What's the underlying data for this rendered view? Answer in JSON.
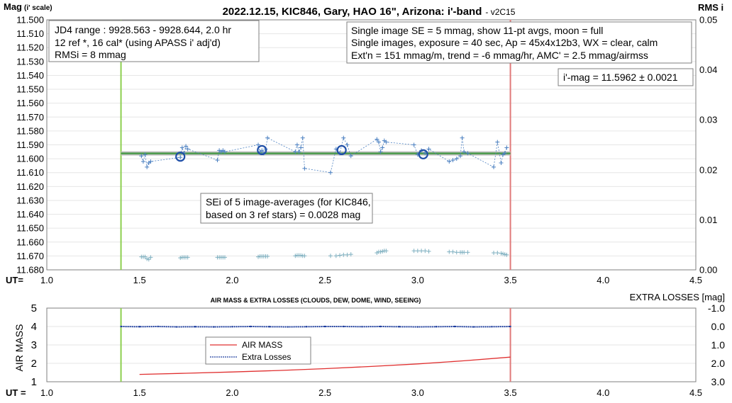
{
  "chart_data": [
    {
      "type": "scatter",
      "title": "2022.12.15, KIC846, Gary, HAO 16\", Arizona: i'-band",
      "title_suffix": "- v2C15",
      "ylabel_main": "Mag",
      "ylabel_sub": "(i' scale)",
      "ylabel_right": "RMS i",
      "x_axis_label": "UT=",
      "x_ticks": [
        "1.0",
        "1.5",
        "2.0",
        "2.5",
        "3.0",
        "3.5",
        "4.0",
        "4.5"
      ],
      "y_ticks": [
        "11.500",
        "11.510",
        "11.520",
        "11.530",
        "11.540",
        "11.550",
        "11.560",
        "11.570",
        "11.580",
        "11.590",
        "11.600",
        "11.610",
        "11.620",
        "11.630",
        "11.640",
        "11.650",
        "11.660",
        "11.670",
        "11.680"
      ],
      "y_right_ticks": [
        "0.05",
        "0.04",
        "0.03",
        "0.02",
        "0.01",
        "0.00"
      ],
      "xlim": [
        1.0,
        4.5
      ],
      "ylim": [
        11.68,
        11.5
      ],
      "y_right_lim": [
        0.0,
        0.05
      ],
      "vertical_lines": [
        {
          "x": 1.4,
          "color": "#8ccf4f"
        },
        {
          "x": 3.5,
          "color": "#e07a7a"
        }
      ],
      "fit_line": {
        "x": [
          1.4,
          3.5
        ],
        "y": [
          11.5962,
          11.5962
        ],
        "color": "#4a9b4a"
      },
      "info_left": [
        "JD4 range : 9928.563 - 9928.644, 2.0  hr",
        "12 ref *, 16 cal* (using APASS i' adj'd)",
        "RMSi = 8 mmag"
      ],
      "info_right": [
        "Single image SE = 5 mmag, show 11-pt avgs, moon = full",
        "Single images, exposure = 40 sec, Ap = 45x4x12b3, WX = clear, calm",
        "Ext'n = 151 mmag/m, trend = -6 mmag/hr, AMC' = 2.5 mmag/airmss"
      ],
      "imag_label": "i'-mag = 11.5962 ± 0.0021",
      "sei_text": [
        "SEi of 5 image-averages (for KIC846,",
        "based on 3 ref stars) = 0.0028 mag"
      ],
      "series": [
        {
          "kind": "single-images",
          "color": "#4a7fc0",
          "x": [
            1.51,
            1.52,
            1.53,
            1.54,
            1.55,
            1.56,
            1.72,
            1.73,
            1.74,
            1.75,
            1.76,
            1.92,
            1.93,
            1.94,
            1.95,
            1.96,
            2.14,
            2.15,
            2.16,
            2.17,
            2.18,
            2.19,
            2.34,
            2.35,
            2.36,
            2.37,
            2.38,
            2.39,
            2.53,
            2.56,
            2.58,
            2.6,
            2.62,
            2.64,
            2.78,
            2.79,
            2.8,
            2.81,
            2.82,
            2.83,
            2.98,
            3.0,
            3.02,
            3.04,
            3.06,
            3.17,
            3.19,
            3.21,
            3.23,
            3.24,
            3.25,
            3.27,
            3.41,
            3.43,
            3.45,
            3.46,
            3.47,
            3.48
          ],
          "y": [
            11.598,
            11.602,
            11.597,
            11.606,
            11.603,
            11.602,
            11.599,
            11.592,
            11.596,
            11.591,
            11.593,
            11.601,
            11.594,
            11.595,
            11.594,
            11.595,
            11.59,
            11.595,
            11.594,
            11.596,
            11.593,
            11.585,
            11.595,
            11.59,
            11.595,
            11.592,
            11.585,
            11.607,
            11.61,
            11.593,
            11.596,
            11.585,
            11.59,
            11.598,
            11.586,
            11.588,
            11.595,
            11.592,
            11.587,
            11.588,
            11.59,
            11.597,
            11.594,
            11.596,
            11.593,
            11.602,
            11.601,
            11.6,
            11.598,
            11.585,
            11.595,
            11.596,
            11.606,
            11.588,
            11.603,
            11.597,
            11.596,
            11.592
          ]
        },
        {
          "kind": "averages",
          "color": "#1f4fa8",
          "x": [
            1.72,
            2.16,
            2.59,
            3.03
          ],
          "y": [
            11.5985,
            11.5938,
            11.5938,
            11.5968
          ]
        },
        {
          "kind": "rms",
          "axis": "right",
          "color": "#7fb0c0",
          "x": [
            1.51,
            1.52,
            1.53,
            1.54,
            1.55,
            1.56,
            1.72,
            1.73,
            1.74,
            1.75,
            1.76,
            1.92,
            1.93,
            1.94,
            1.95,
            1.96,
            2.14,
            2.15,
            2.16,
            2.17,
            2.18,
            2.19,
            2.34,
            2.35,
            2.36,
            2.37,
            2.38,
            2.39,
            2.53,
            2.56,
            2.58,
            2.6,
            2.62,
            2.64,
            2.78,
            2.79,
            2.8,
            2.81,
            2.82,
            2.83,
            2.98,
            3.0,
            3.02,
            3.04,
            3.06,
            3.17,
            3.19,
            3.21,
            3.23,
            3.24,
            3.25,
            3.27,
            3.41,
            3.43,
            3.45,
            3.46,
            3.47,
            3.48
          ],
          "y": [
            0.0026,
            0.0026,
            0.0026,
            0.0022,
            0.0021,
            0.0025,
            0.0024,
            0.0025,
            0.0025,
            0.0025,
            0.0025,
            0.0025,
            0.0025,
            0.0025,
            0.0025,
            0.0025,
            0.0026,
            0.0027,
            0.0027,
            0.0027,
            0.0027,
            0.0027,
            0.0028,
            0.0029,
            0.0029,
            0.0029,
            0.0028,
            0.0028,
            0.0028,
            0.0028,
            0.0029,
            0.003,
            0.003,
            0.0031,
            0.0034,
            0.0036,
            0.0036,
            0.0037,
            0.0038,
            0.0038,
            0.0038,
            0.0038,
            0.0038,
            0.0038,
            0.0037,
            0.0036,
            0.0036,
            0.0035,
            0.0035,
            0.0035,
            0.0035,
            0.0035,
            0.0034,
            0.0034,
            0.0033,
            0.0032,
            0.0031,
            0.003
          ]
        }
      ]
    },
    {
      "type": "line",
      "title": "AIR MASS & EXTRA LOSSES (CLOUDS, DEW, DOME, WIND, SEEING)",
      "ylabel": "AIR MASS",
      "ylabel_right": "EXTRA LOSSES [mag]",
      "x_axis_label": "UT =",
      "x_ticks": [
        "1.0",
        "1.5",
        "2.0",
        "2.5",
        "3.0",
        "3.5",
        "4.0",
        "4.5"
      ],
      "y_ticks": [
        "5",
        "4",
        "3",
        "2",
        "1"
      ],
      "y_right_ticks": [
        "-1.0",
        "0.0",
        "1.0",
        "2.0",
        "3.0"
      ],
      "xlim": [
        1.0,
        4.5
      ],
      "ylim": [
        1,
        5
      ],
      "y_right_lim": [
        3.0,
        -1.0
      ],
      "vertical_lines": [
        {
          "x": 1.4,
          "color": "#8ccf4f"
        },
        {
          "x": 3.5,
          "color": "#e07a7a"
        }
      ],
      "legend": [
        "AIR MASS",
        "Extra Losses"
      ],
      "series": [
        {
          "name": "AIR MASS",
          "color": "#e03030",
          "x": [
            1.5,
            1.75,
            2.0,
            2.25,
            2.5,
            2.75,
            3.0,
            3.25,
            3.5
          ],
          "y": [
            1.4,
            1.46,
            1.53,
            1.61,
            1.71,
            1.83,
            1.97,
            2.14,
            2.34
          ]
        },
        {
          "name": "Extra Losses",
          "color": "#1f3f9f",
          "axis": "right",
          "x": [
            1.4,
            1.5,
            1.6,
            1.7,
            1.8,
            1.9,
            2.0,
            2.1,
            2.2,
            2.3,
            2.4,
            2.5,
            2.6,
            2.7,
            2.8,
            2.9,
            3.0,
            3.1,
            3.2,
            3.3,
            3.4,
            3.5
          ],
          "y": [
            0.0,
            0.01,
            0.0,
            0.02,
            0.01,
            0.02,
            0.01,
            0.0,
            0.01,
            0.02,
            0.01,
            0.0,
            0.0,
            0.01,
            0.0,
            0.01,
            0.02,
            0.01,
            0.0,
            0.02,
            0.01,
            0.0
          ]
        }
      ]
    }
  ]
}
